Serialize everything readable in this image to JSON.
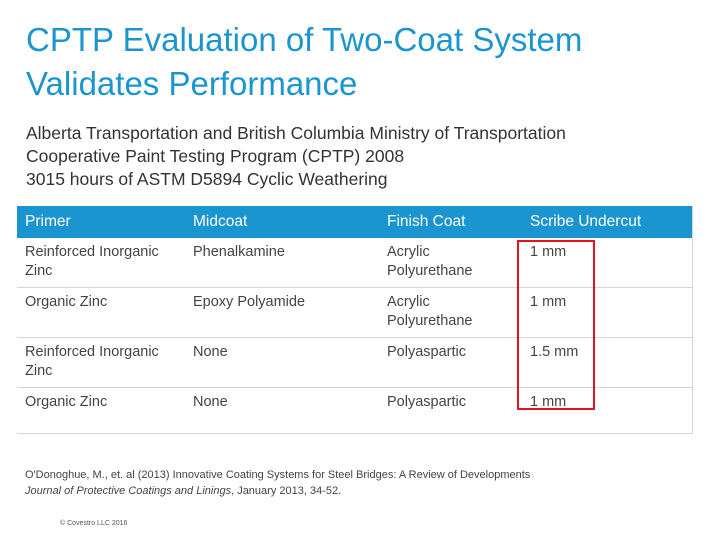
{
  "title": {
    "line1": "CPTP Evaluation of Two-Coat System",
    "line2": "Validates Performance"
  },
  "subtitle": {
    "line1": "Alberta Transportation and British Columbia Ministry of Transportation",
    "line2": "Cooperative Paint Testing Program (CPTP) 2008",
    "line3": "3015 hours of ASTM D5894 Cyclic Weathering"
  },
  "table": {
    "headers": [
      "Primer",
      "Midcoat",
      "Finish Coat",
      "Scribe Undercut"
    ],
    "rows": [
      [
        "Reinforced Inorganic Zinc",
        "Phenalkamine",
        "Acrylic Polyurethane",
        "1 mm"
      ],
      [
        "Organic Zinc",
        "Epoxy Polyamide",
        "Acrylic Polyurethane",
        "1 mm"
      ],
      [
        "Reinforced Inorganic Zinc",
        "None",
        "Polyaspartic",
        "1.5 mm"
      ],
      [
        "Organic Zinc",
        "None",
        "Polyaspartic",
        "1 mm"
      ]
    ]
  },
  "citation": {
    "line1": "O'Donoghue, M., et. al (2013) Innovative Coating Systems for Steel Bridges: A Review of Developments",
    "journal": "Journal of Protective Coatings and Linings",
    "line2_rest": ", January 2013, 34-52."
  },
  "copyright": "© Covestro LLC 2016",
  "colors": {
    "accent": "#1a95cf",
    "highlight": "#e0141e"
  }
}
